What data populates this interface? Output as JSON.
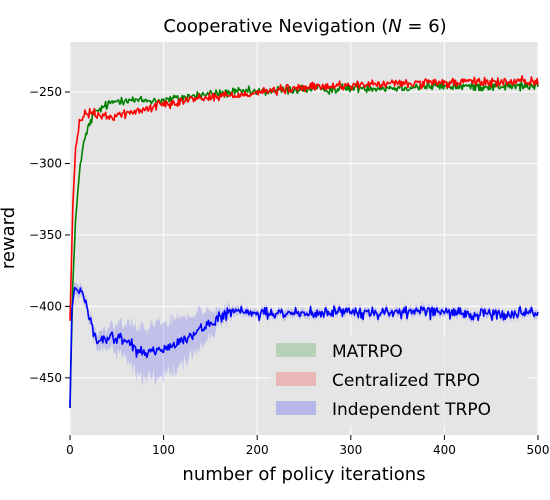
{
  "chart_data": {
    "type": "line",
    "title_main": "Cooperative Nevigation (",
    "title_var": "N",
    "title_rest": " = 6)",
    "xlabel": "number of policy iterations",
    "ylabel": "reward",
    "xlim": [
      0,
      500
    ],
    "ylim": [
      -490,
      -215
    ],
    "xticks": [
      0,
      100,
      200,
      300,
      400,
      500
    ],
    "yticks": [
      -450,
      -400,
      -350,
      -300,
      -250
    ],
    "xtick_labels": [
      "0",
      "100",
      "200",
      "300",
      "400",
      "500"
    ],
    "ytick_labels": [
      "−450",
      "−400",
      "−350",
      "−300",
      "−250"
    ],
    "grid": true,
    "legend_position": "bottom-right",
    "series": [
      {
        "name": "MATRPO",
        "color": "#008000",
        "x": [
          0,
          3,
          6,
          10,
          15,
          20,
          25,
          30,
          35,
          40,
          50,
          60,
          70,
          80,
          90,
          100,
          120,
          140,
          160,
          180,
          200,
          220,
          250,
          280,
          300,
          320,
          350,
          380,
          400,
          420,
          450,
          480,
          500
        ],
        "y": [
          -470,
          -385,
          -340,
          -305,
          -285,
          -274,
          -266,
          -263,
          -261,
          -259,
          -256,
          -255,
          -256,
          -256,
          -256,
          -256,
          -254,
          -252,
          -251,
          -250,
          -250,
          -249,
          -248,
          -248,
          -247,
          -247,
          -247,
          -246,
          -246,
          -246,
          -246,
          -246,
          -246
        ],
        "noise": 3.5
      },
      {
        "name": "Centralized TRPO",
        "color": "#ff0000",
        "x": [
          0,
          3,
          6,
          10,
          15,
          20,
          25,
          30,
          35,
          40,
          50,
          60,
          70,
          80,
          90,
          100,
          120,
          140,
          160,
          180,
          200,
          220,
          250,
          280,
          300,
          320,
          350,
          380,
          400,
          420,
          450,
          480,
          500
        ],
        "y": [
          -410,
          -330,
          -290,
          -272,
          -266,
          -265,
          -265,
          -266,
          -267,
          -268,
          -266,
          -265,
          -264,
          -262,
          -260,
          -258,
          -256,
          -254,
          -253,
          -252,
          -250,
          -249,
          -247,
          -246,
          -245,
          -245,
          -244,
          -244,
          -244,
          -243,
          -243,
          -243,
          -243
        ],
        "noise": 3.5
      },
      {
        "name": "Independent TRPO",
        "color": "#0000ff",
        "x": [
          0,
          2,
          5,
          10,
          15,
          20,
          25,
          30,
          40,
          50,
          60,
          70,
          80,
          90,
          100,
          110,
          120,
          130,
          140,
          150,
          160,
          170,
          180,
          200,
          220,
          250,
          280,
          300,
          320,
          350,
          380,
          400,
          420,
          450,
          480,
          500
        ],
        "y": [
          -472,
          -400,
          -388,
          -387,
          -393,
          -405,
          -418,
          -424,
          -422,
          -421,
          -425,
          -430,
          -432,
          -431,
          -430,
          -428,
          -424,
          -420,
          -416,
          -413,
          -408,
          -405,
          -404,
          -405,
          -405,
          -405,
          -404,
          -404,
          -404,
          -404,
          -404,
          -404,
          -405,
          -405,
          -405,
          -405
        ],
        "noise": 4.5,
        "band": [
          [
            20,
            4
          ],
          [
            40,
            8
          ],
          [
            60,
            14
          ],
          [
            80,
            20
          ],
          [
            100,
            20
          ],
          [
            120,
            18
          ],
          [
            140,
            14
          ],
          [
            160,
            6
          ],
          [
            180,
            3
          ],
          [
            500,
            3
          ]
        ]
      }
    ]
  }
}
